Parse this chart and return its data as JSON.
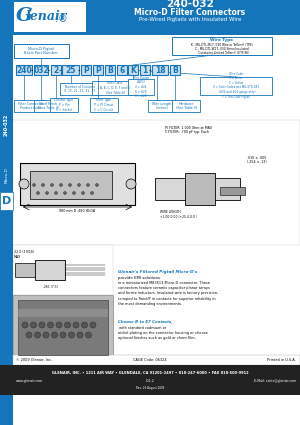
{
  "title_main": "240-032",
  "title_sub": "Micro-D Filter Connectors",
  "title_sub2": "Pre-Wired Pigtails with Insulated Wire",
  "header_bg": "#1475BB",
  "header_text_color": "#FFFFFF",
  "sidebar_bg": "#1475BB",
  "part_number_boxes": [
    "240",
    "032",
    "2",
    "25",
    "P",
    "P",
    "B",
    "6",
    "K",
    "1",
    "18",
    "B"
  ],
  "medium_blue": "#1475BB",
  "light_blue": "#C8DDEF",
  "bg_color": "#FFFFFF",
  "dark_text": "#111111",
  "footer_company": "© 2009 Glenair, Inc.",
  "footer_cage": "CAGE Code: 06324",
  "footer_printed": "Printed in U.S.A.",
  "footer_address": "GLENAIR, INC. • 1211 AIR WAY • GLENDALE, CA 91201-2497 • 818-247-6000 • FAX 818-500-9912",
  "footer_web": "www.glenair.com",
  "footer_doc": "D-1.2",
  "footer_email": "E-Mail: sales@glenair.com",
  "footer_rev": "Rev. 26 August 2009",
  "section_d": "D"
}
